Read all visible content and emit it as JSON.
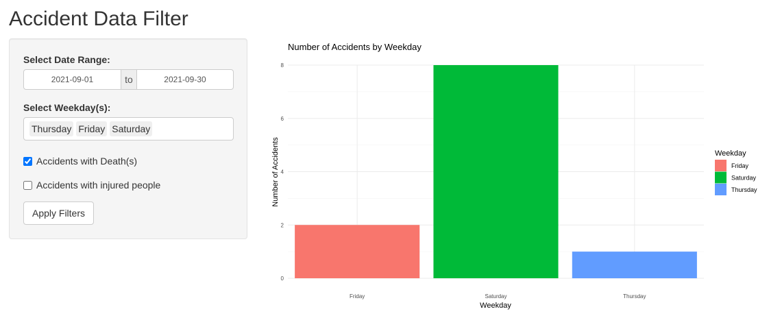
{
  "app": {
    "title": "Accident Data Filter"
  },
  "filters": {
    "date_range": {
      "label": "Select Date Range:",
      "start": "2021-09-01",
      "separator": "to",
      "end": "2021-09-30"
    },
    "weekdays": {
      "label": "Select Weekday(s):",
      "selected": [
        "Thursday",
        "Friday",
        "Saturday"
      ]
    },
    "deaths": {
      "label": "Accidents with Death(s)",
      "checked": true
    },
    "injured": {
      "label": "Accidents with injured people",
      "checked": false
    },
    "apply_label": "Apply Filters"
  },
  "chart_data": {
    "type": "bar",
    "title": "Number of Accidents by Weekday",
    "xlabel": "Weekday",
    "ylabel": "Number of Accidents",
    "categories": [
      "Friday",
      "Saturday",
      "Thursday"
    ],
    "values": [
      2,
      8,
      1
    ],
    "colors": [
      "#F8766D",
      "#00BA38",
      "#619CFF"
    ],
    "ylim": [
      0,
      8
    ],
    "yticks": [
      0,
      2,
      4,
      6,
      8
    ],
    "grid": true,
    "legend": {
      "title": "Weekday",
      "position": "right",
      "entries": [
        "Friday",
        "Saturday",
        "Thursday"
      ]
    }
  }
}
